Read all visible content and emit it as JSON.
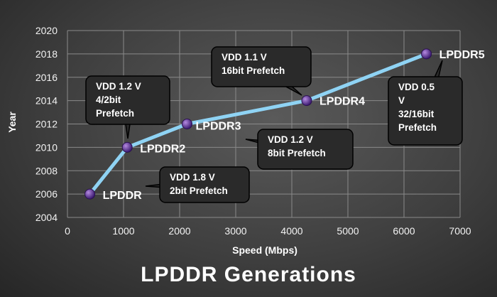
{
  "chart_data": {
    "type": "line",
    "title": "LPDDR Generations",
    "xlabel": "Speed (Mbps)",
    "ylabel": "Year",
    "xlim": [
      0,
      7000
    ],
    "ylim": [
      2004,
      2020
    ],
    "x_ticks": [
      0,
      1000,
      2000,
      3000,
      4000,
      5000,
      6000,
      7000
    ],
    "y_ticks": [
      2004,
      2006,
      2008,
      2010,
      2012,
      2014,
      2016,
      2018,
      2020
    ],
    "grid": true,
    "series": [
      {
        "values": [
          {
            "x": 400,
            "y": 2006,
            "label": "LPDDR"
          },
          {
            "x": 1066,
            "y": 2010,
            "label": "LPDDR2"
          },
          {
            "x": 2133,
            "y": 2012,
            "label": "LPDDR3"
          },
          {
            "x": 4266,
            "y": 2014,
            "label": "LPDDR4"
          },
          {
            "x": 6400,
            "y": 2018,
            "label": "LPDDR5"
          }
        ]
      }
    ],
    "annotations": [
      {
        "point": "LPDDR",
        "lines": [
          "VDD 1.8 V",
          "2bit Prefetch"
        ]
      },
      {
        "point": "LPDDR2",
        "lines": [
          "VDD 1.2 V",
          "4/2bit",
          "Prefetch"
        ]
      },
      {
        "point": "LPDDR3",
        "lines": [
          "VDD 1.2 V",
          "8bit Prefetch"
        ]
      },
      {
        "point": "LPDDR4",
        "lines": [
          "VDD 1.1 V",
          "16bit Prefetch"
        ]
      },
      {
        "point": "LPDDR5",
        "lines": [
          "VDD 0.5",
          "V",
          "32/16bit",
          "Prefetch"
        ]
      }
    ],
    "colors": {
      "line": "#8fd3f4",
      "marker": "#5b2c9c",
      "grid": "#8a8a8a",
      "callout_fill": "#2a2a2a"
    }
  }
}
